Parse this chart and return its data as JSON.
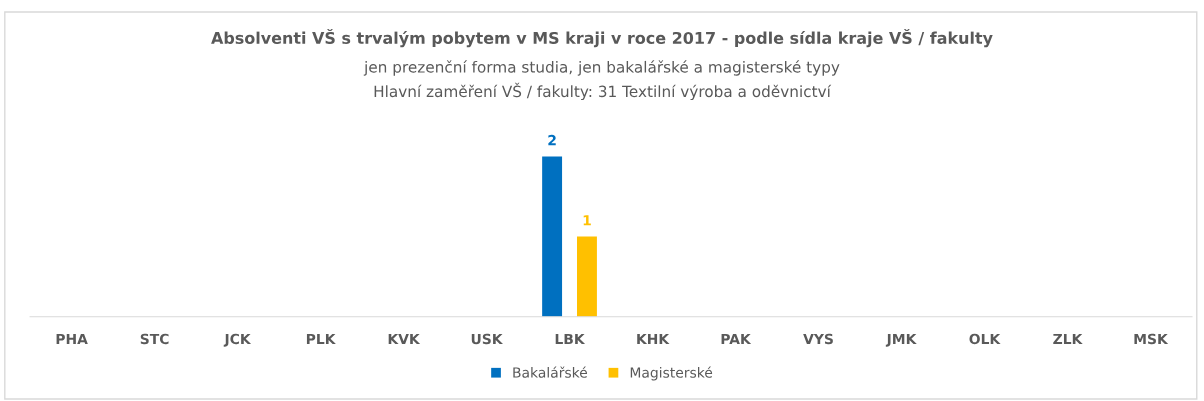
{
  "chart_data": {
    "type": "bar",
    "title": "Absolventi VŠ s trvalým pobytem v MS kraji v roce 2017 - podle sídla kraje VŠ / fakulty",
    "subtitle": "jen prezenční forma studia, jen bakalářské a magisterské typy\nHlavní zaměření VŠ / fakulty: 31 Textilní výroba a oděvnictví",
    "categories": [
      "PHA",
      "STC",
      "JCK",
      "PLK",
      "KVK",
      "USK",
      "LBK",
      "KHK",
      "PAK",
      "VYS",
      "JMK",
      "OLK",
      "ZLK",
      "MSK"
    ],
    "series": [
      {
        "name": "Bakalářské",
        "color": "#0070c0",
        "values": [
          0,
          0,
          0,
          0,
          0,
          0,
          2,
          0,
          0,
          0,
          0,
          0,
          0,
          0
        ],
        "value_labels": [
          null,
          null,
          null,
          null,
          null,
          null,
          "2",
          null,
          null,
          null,
          null,
          null,
          null,
          null
        ]
      },
      {
        "name": "Magisterské",
        "color": "#ffc000",
        "values": [
          0,
          0,
          0,
          0,
          0,
          0,
          1,
          0,
          0,
          0,
          0,
          0,
          0,
          0
        ],
        "value_labels": [
          null,
          null,
          null,
          null,
          null,
          null,
          "1",
          null,
          null,
          null,
          null,
          null,
          null,
          null
        ]
      }
    ],
    "legend": "bottom",
    "grid": false,
    "tick_labels": "x"
  }
}
